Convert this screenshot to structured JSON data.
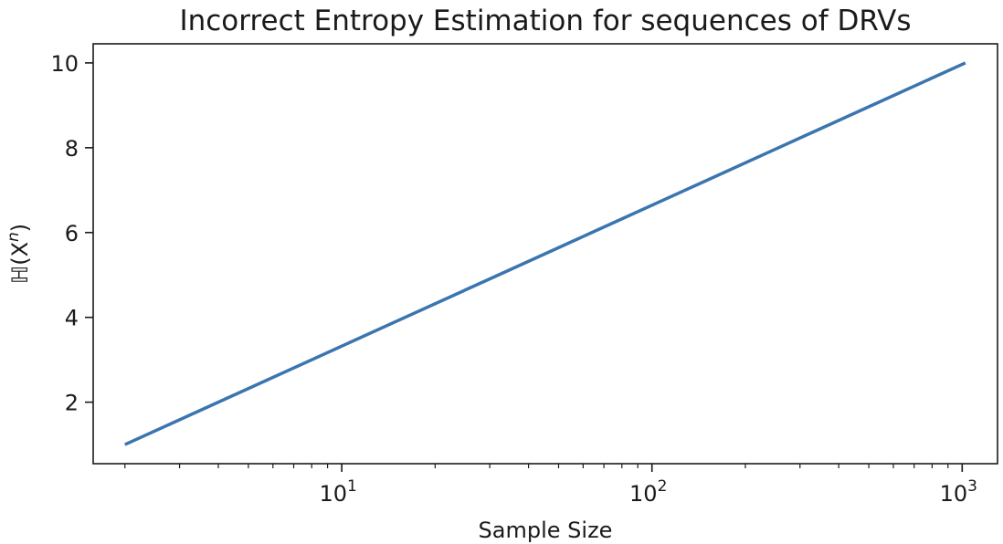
{
  "chart_data": {
    "type": "line",
    "title": "Incorrect Entropy Estimation for sequences of DRVs",
    "xlabel": "Sample Size",
    "ylabel": "ℍ(X",
    "ylabel_superscript": "n",
    "ylabel_close": ")",
    "x_scale": "log",
    "x_base": "10",
    "xlim": [
      1.58,
      1300
    ],
    "ylim": [
      0.55,
      10.45
    ],
    "x_ticks": [
      {
        "value": 10,
        "exponent": "1"
      },
      {
        "value": 100,
        "exponent": "2"
      },
      {
        "value": 1000,
        "exponent": "3"
      }
    ],
    "y_ticks": [
      {
        "value": 2,
        "label": "2"
      },
      {
        "value": 4,
        "label": "4"
      },
      {
        "value": 6,
        "label": "6"
      },
      {
        "value": 8,
        "label": "8"
      },
      {
        "value": 10,
        "label": "10"
      }
    ],
    "grid": false,
    "line_color": "#3b75af",
    "series": [
      {
        "x": [
          2,
          4,
          8,
          16,
          32,
          64,
          128,
          256,
          512,
          1024
        ],
        "y": [
          1,
          2,
          3,
          4,
          5,
          6,
          7,
          8,
          9,
          10
        ]
      }
    ]
  }
}
